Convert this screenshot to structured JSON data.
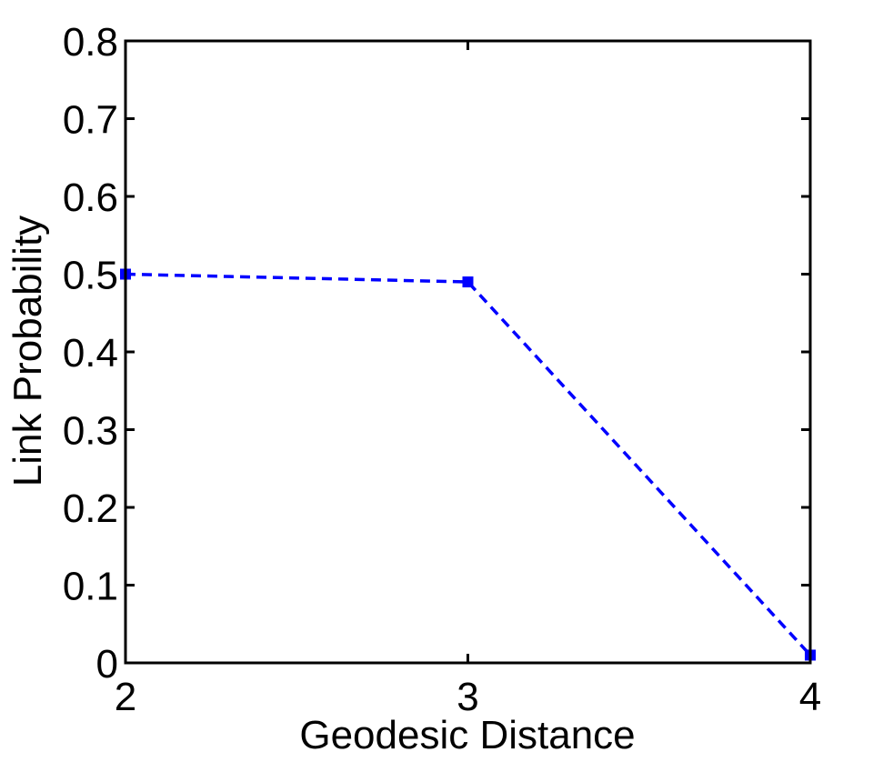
{
  "chart_data": {
    "type": "line",
    "title": "",
    "xlabel": "Geodesic Distance",
    "ylabel": "Link Probability",
    "xlim": [
      2,
      4
    ],
    "ylim": [
      0,
      0.8
    ],
    "xticks": [
      2,
      3,
      4
    ],
    "xtick_labels": [
      "2",
      "3",
      "4"
    ],
    "yticks": [
      0,
      0.1,
      0.2,
      0.3,
      0.4,
      0.5,
      0.6,
      0.7,
      0.8
    ],
    "ytick_labels": [
      "0",
      "0.1",
      "0.2",
      "0.3",
      "0.4",
      "0.5",
      "0.6",
      "0.7",
      "0.8"
    ],
    "grid": false,
    "series": [
      {
        "x": [
          2,
          3,
          4
        ],
        "values": [
          0.5,
          0.49,
          0.01
        ],
        "color": "#0000ff",
        "line_style": "dashed",
        "marker": "square"
      }
    ]
  }
}
